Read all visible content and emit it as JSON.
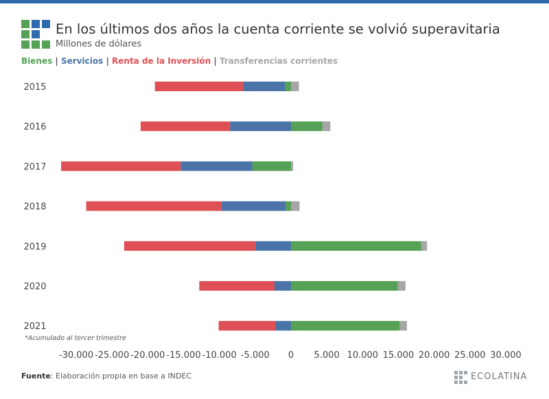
{
  "header": {
    "title": "En los últimos dos años la cuenta corriente se volvió superavitaria",
    "subtitle": "Millones de dólares"
  },
  "legend": [
    {
      "label": "Bienes",
      "color": "#55a155"
    },
    {
      "label": "Servicios",
      "color": "#4a74a8"
    },
    {
      "label": "Renta de la Inversión",
      "color": "#de5055"
    },
    {
      "label": "Transferencias corrientes",
      "color": "#a6a6a6"
    }
  ],
  "footnote": "*Acumulado al tercer trimestre",
  "source": {
    "label": "Fuente",
    "text": ": Elaboración propia en base a INDEC"
  },
  "brand": {
    "text": "ECOLATINA"
  },
  "chart_data": {
    "type": "bar",
    "orientation": "horizontal",
    "stacked": true,
    "title": "En los últimos dos años la cuenta corriente se volvió superavitaria",
    "subtitle": "Millones de dólares",
    "categories": [
      "2015",
      "2016",
      "2017",
      "2018",
      "2019",
      "2020",
      "2021"
    ],
    "series": [
      {
        "name": "Bienes",
        "color": "#55a155",
        "values": [
          -800,
          4400,
          -5400,
          -700,
          18200,
          14900,
          15200
        ]
      },
      {
        "name": "Servicios",
        "color": "#4a74a8",
        "values": [
          -5900,
          -8500,
          -10000,
          -9000,
          -5000,
          -2300,
          -2200
        ]
      },
      {
        "name": "Renta de la Inversión",
        "color": "#de5055",
        "values": [
          -12300,
          -12500,
          -16700,
          -18900,
          -18300,
          -10500,
          -7900
        ]
      },
      {
        "name": "Transferencias corrientes",
        "color": "#a6a6a6",
        "values": [
          1100,
          1100,
          300,
          1200,
          800,
          1100,
          1000
        ]
      }
    ],
    "xlim": [
      -30000,
      30000
    ],
    "xticks": [
      -30000,
      -25000,
      -20000,
      -15000,
      -10000,
      -5000,
      0,
      5000,
      10000,
      15000,
      20000,
      25000,
      30000
    ],
    "xtick_labels": [
      "-30.000",
      "-25.000",
      "-20.000",
      "-15.000",
      "-10.000",
      "-5.000",
      "0",
      "5.000",
      "10.000",
      "15.000",
      "20.000",
      "25.000",
      "30.000"
    ],
    "xlabel": "",
    "ylabel": "",
    "grid": false,
    "legend_position": "top-left"
  }
}
